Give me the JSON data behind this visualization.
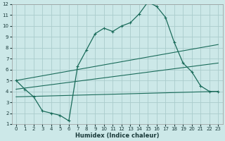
{
  "xlabel": "Humidex (Indice chaleur)",
  "bg_color": "#cce8e8",
  "grid_color": "#aacccc",
  "line_color": "#1a6b5a",
  "xlim": [
    -0.5,
    23.5
  ],
  "ylim": [
    1,
    12
  ],
  "xticks": [
    0,
    1,
    2,
    3,
    4,
    5,
    6,
    7,
    8,
    9,
    10,
    11,
    12,
    13,
    14,
    15,
    16,
    17,
    18,
    19,
    20,
    21,
    22,
    23
  ],
  "yticks": [
    1,
    2,
    3,
    4,
    5,
    6,
    7,
    8,
    9,
    10,
    11,
    12
  ],
  "curve_x": [
    0,
    1,
    2,
    3,
    4,
    5,
    6,
    7,
    8,
    9,
    10,
    11,
    12,
    13,
    14,
    15,
    16,
    17,
    18,
    19,
    20,
    21,
    22,
    23
  ],
  "curve_y": [
    5.0,
    4.2,
    3.5,
    2.2,
    2.0,
    1.8,
    1.3,
    6.3,
    7.8,
    9.3,
    9.8,
    9.5,
    10.0,
    10.3,
    11.1,
    12.2,
    11.8,
    10.8,
    8.5,
    6.6,
    5.8,
    4.5,
    4.0,
    4.0
  ],
  "line1_x": [
    0,
    23
  ],
  "line1_y": [
    5.0,
    8.3
  ],
  "line2_x": [
    0,
    23
  ],
  "line2_y": [
    4.2,
    6.6
  ],
  "line3_x": [
    0,
    23
  ],
  "line3_y": [
    3.5,
    4.0
  ]
}
